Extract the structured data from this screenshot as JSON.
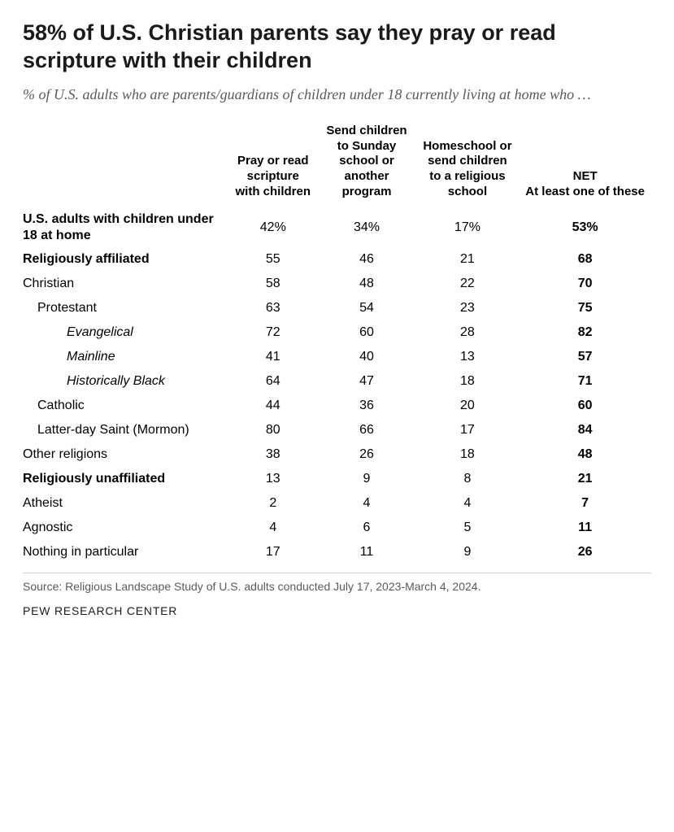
{
  "title": "58% of U.S. Christian parents say they pray or read scripture with their children",
  "subtitle": "% of U.S. adults who are parents/guardians of children under 18 currently living at home who …",
  "columns": {
    "c1": "Pray or read scripture with children",
    "c2": "Send children to Sunday school or another program",
    "c3": "Homeschool or send children to a religious school",
    "net_top": "NET",
    "net_sub": "At least one of these"
  },
  "rows": [
    {
      "label": "U.S. adults with children under 18 at home",
      "c1": "42%",
      "c2": "34%",
      "c3": "17%",
      "net": "53%",
      "style": "header-row",
      "indent": 0
    },
    {
      "label": "Religiously affiliated",
      "c1": "55",
      "c2": "46",
      "c3": "21",
      "net": "68",
      "style": "section",
      "indent": 0
    },
    {
      "label": "Christian",
      "c1": "58",
      "c2": "48",
      "c3": "22",
      "net": "70",
      "style": "",
      "indent": 0
    },
    {
      "label": "Protestant",
      "c1": "63",
      "c2": "54",
      "c3": "23",
      "net": "75",
      "style": "",
      "indent": 1
    },
    {
      "label": "Evangelical",
      "c1": "72",
      "c2": "60",
      "c3": "28",
      "net": "82",
      "style": "italic",
      "indent": 2
    },
    {
      "label": "Mainline",
      "c1": "41",
      "c2": "40",
      "c3": "13",
      "net": "57",
      "style": "italic",
      "indent": 2
    },
    {
      "label": "Historically Black",
      "c1": "64",
      "c2": "47",
      "c3": "18",
      "net": "71",
      "style": "italic",
      "indent": 2
    },
    {
      "label": "Catholic",
      "c1": "44",
      "c2": "36",
      "c3": "20",
      "net": "60",
      "style": "",
      "indent": 1
    },
    {
      "label": "Latter-day Saint (Mormon)",
      "c1": "80",
      "c2": "66",
      "c3": "17",
      "net": "84",
      "style": "",
      "indent": 1
    },
    {
      "label": "Other religions",
      "c1": "38",
      "c2": "26",
      "c3": "18",
      "net": "48",
      "style": "",
      "indent": 0
    },
    {
      "label": "Religiously unaffiliated",
      "c1": "13",
      "c2": "9",
      "c3": "8",
      "net": "21",
      "style": "section",
      "indent": 0
    },
    {
      "label": "Atheist",
      "c1": "2",
      "c2": "4",
      "c3": "4",
      "net": "7",
      "style": "",
      "indent": 0
    },
    {
      "label": "Agnostic",
      "c1": "4",
      "c2": "6",
      "c3": "5",
      "net": "11",
      "style": "",
      "indent": 0
    },
    {
      "label": "Nothing in particular",
      "c1": "17",
      "c2": "11",
      "c3": "9",
      "net": "26",
      "style": "",
      "indent": 0
    }
  ],
  "source": "Source: Religious Landscape Study of U.S. adults conducted July 17, 2023-March 4, 2024.",
  "brand": "PEW RESEARCH CENTER",
  "layout": {
    "col_widths": [
      "36%",
      "15%",
      "17%",
      "17%",
      "15%"
    ]
  }
}
